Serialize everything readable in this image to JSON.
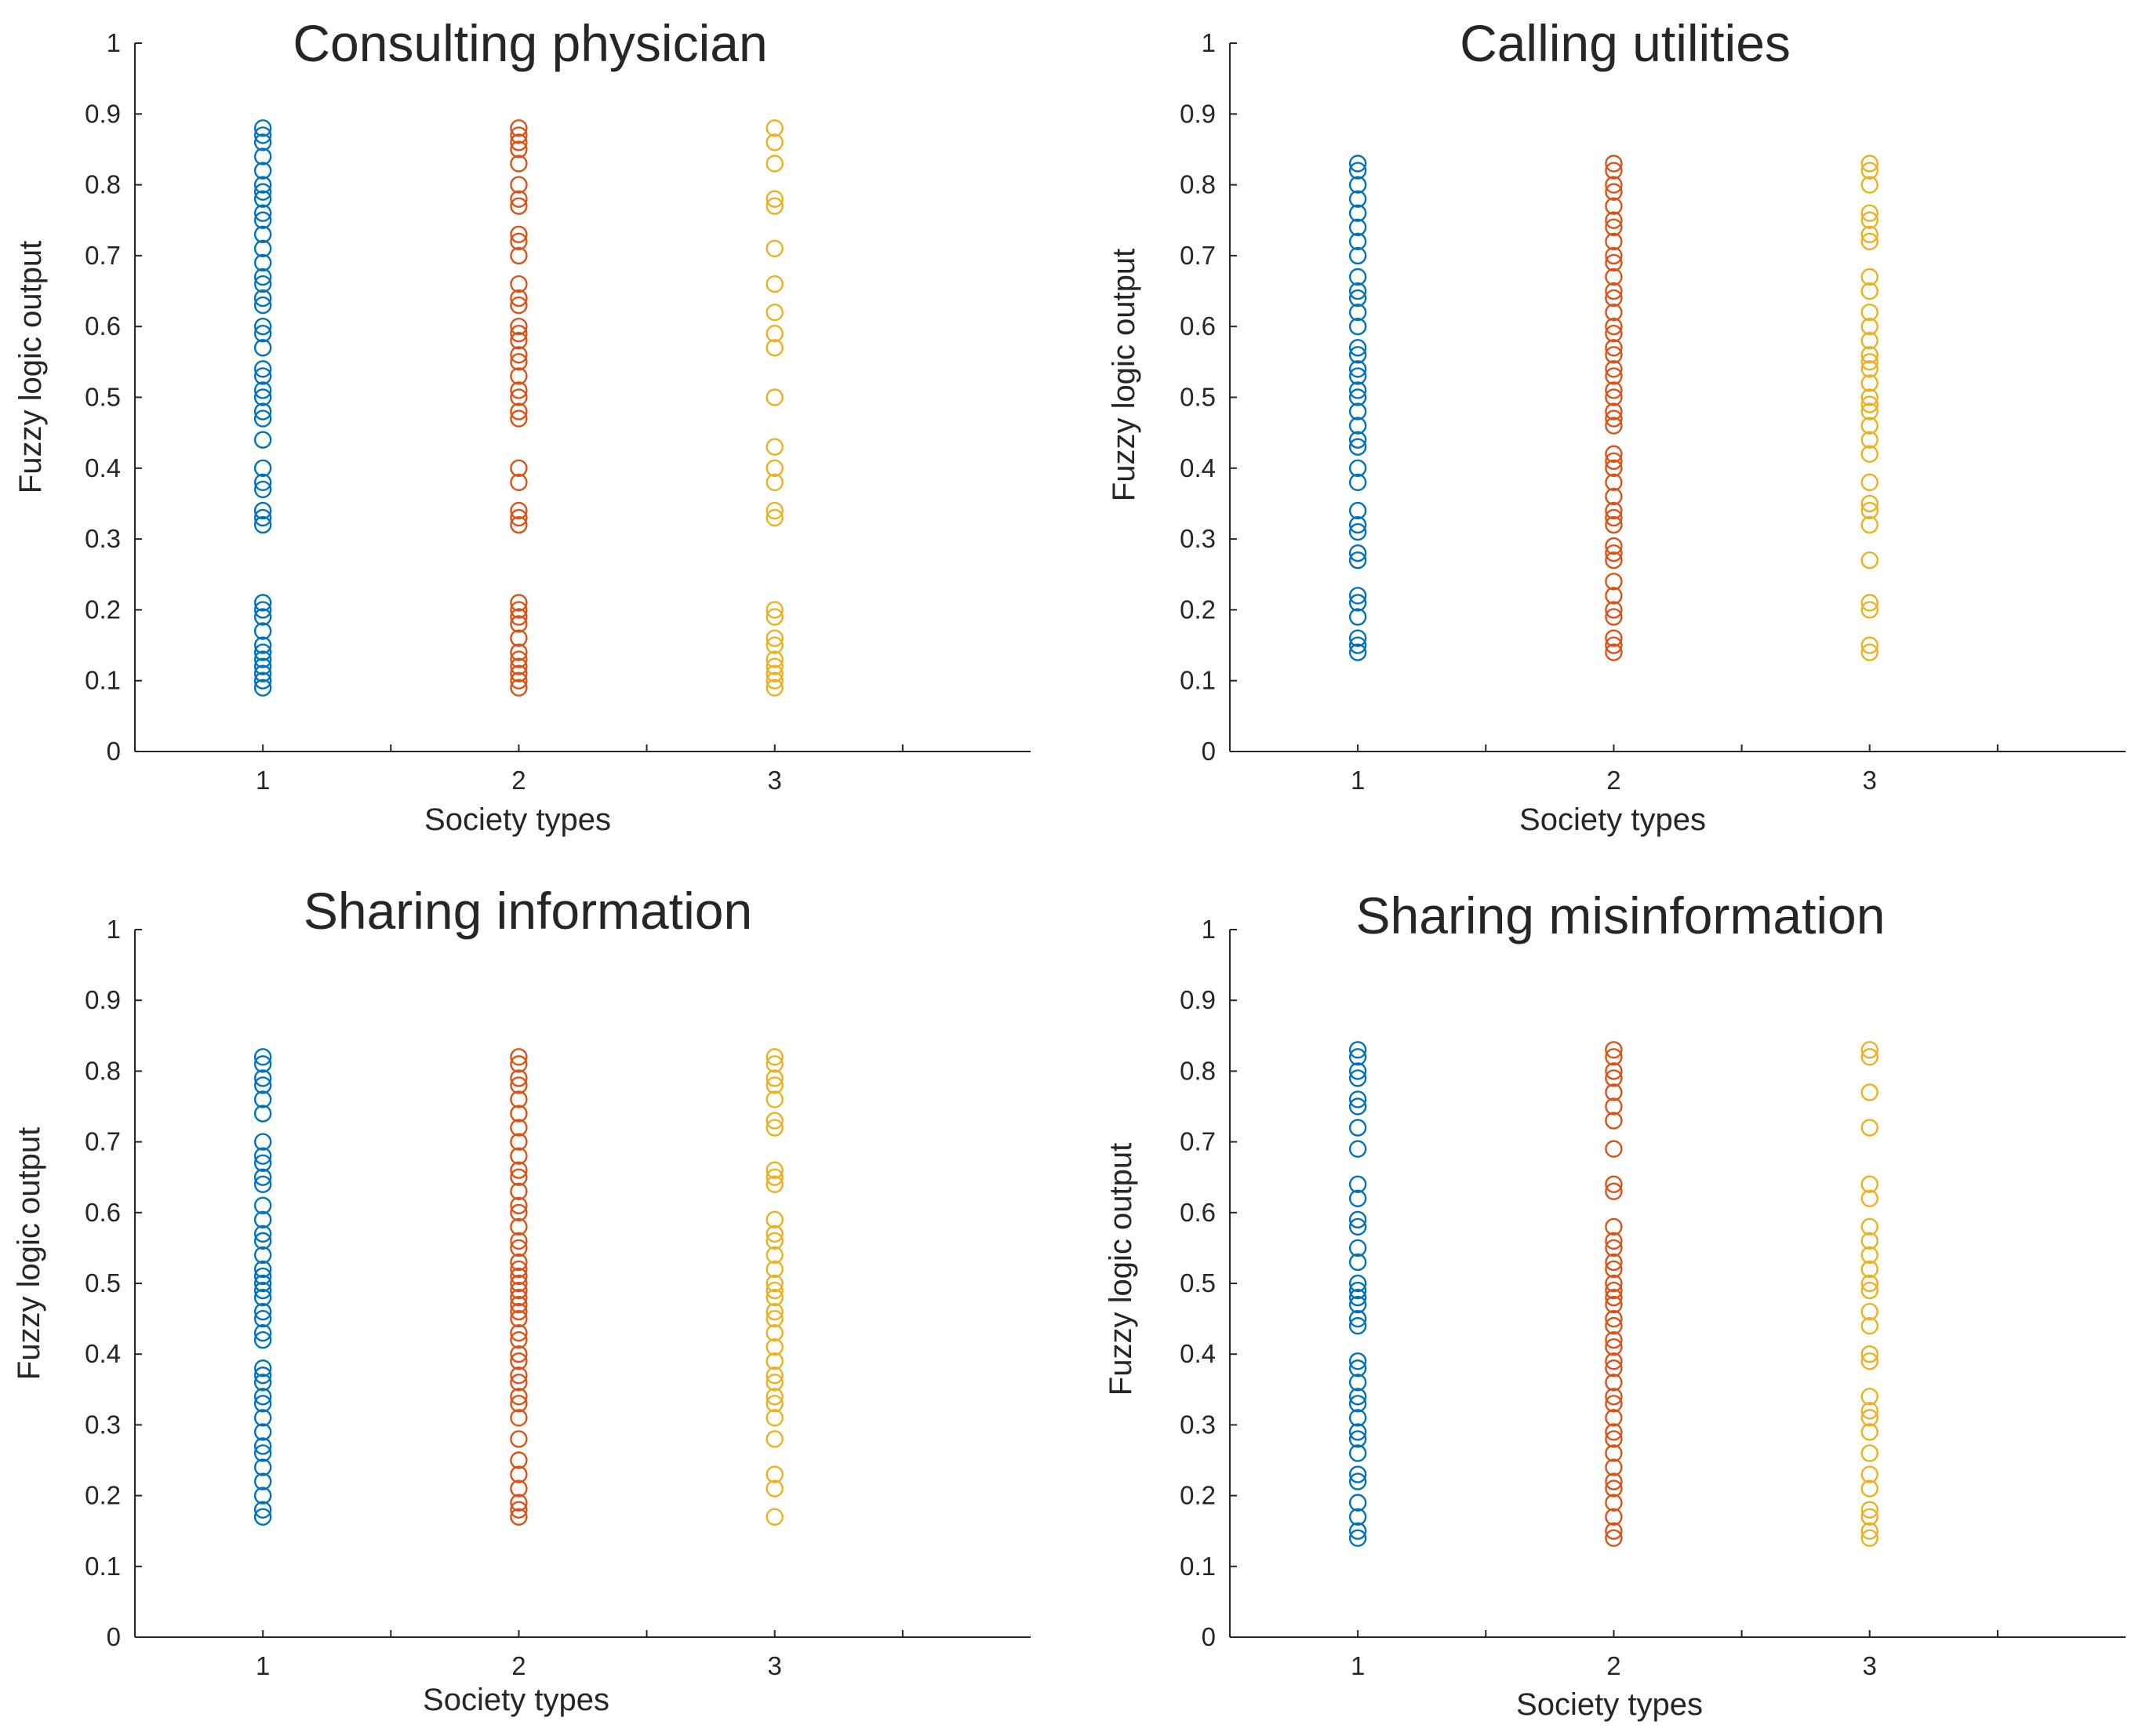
{
  "figure": {
    "colors": {
      "society_1": "#0072bd",
      "society_2": "#d95319",
      "society_3": "#edb120",
      "axis": "#262626"
    }
  },
  "chart_data": [
    {
      "type": "scatter",
      "title": "Consulting physician",
      "xlabel": "Society types",
      "ylabel": "Fuzzy logic output",
      "xlim": [
        0.5,
        4.0
      ],
      "ylim": [
        0,
        1
      ],
      "xticks": [
        "1",
        "2",
        "3"
      ],
      "yticks": [
        "0",
        "0.1",
        "0.2",
        "0.3",
        "0.4",
        "0.5",
        "0.6",
        "0.7",
        "0.8",
        "0.9",
        "1"
      ],
      "series": [
        {
          "name": "1",
          "x": 1,
          "color": "#0072bd",
          "values": [
            0.09,
            0.1,
            0.11,
            0.12,
            0.13,
            0.14,
            0.15,
            0.17,
            0.19,
            0.2,
            0.21,
            0.32,
            0.33,
            0.34,
            0.37,
            0.38,
            0.4,
            0.44,
            0.47,
            0.48,
            0.5,
            0.51,
            0.53,
            0.54,
            0.57,
            0.59,
            0.6,
            0.63,
            0.64,
            0.66,
            0.67,
            0.69,
            0.71,
            0.73,
            0.75,
            0.76,
            0.78,
            0.79,
            0.8,
            0.82,
            0.84,
            0.86,
            0.87,
            0.88
          ]
        },
        {
          "name": "2",
          "x": 2,
          "color": "#d95319",
          "values": [
            0.09,
            0.1,
            0.11,
            0.12,
            0.13,
            0.14,
            0.16,
            0.18,
            0.19,
            0.2,
            0.21,
            0.32,
            0.33,
            0.34,
            0.38,
            0.4,
            0.47,
            0.48,
            0.5,
            0.51,
            0.53,
            0.55,
            0.56,
            0.58,
            0.59,
            0.6,
            0.63,
            0.64,
            0.66,
            0.7,
            0.72,
            0.73,
            0.77,
            0.78,
            0.8,
            0.83,
            0.85,
            0.86,
            0.87,
            0.88
          ]
        },
        {
          "name": "3",
          "x": 3,
          "color": "#edb120",
          "values": [
            0.09,
            0.1,
            0.11,
            0.12,
            0.13,
            0.15,
            0.16,
            0.19,
            0.2,
            0.33,
            0.34,
            0.38,
            0.4,
            0.43,
            0.5,
            0.57,
            0.59,
            0.62,
            0.66,
            0.71,
            0.77,
            0.78,
            0.83,
            0.86,
            0.88
          ]
        }
      ]
    },
    {
      "type": "scatter",
      "title": "Calling utilities",
      "xlabel": "Society types",
      "ylabel": "Fuzzy logic output",
      "xlim": [
        0.5,
        4.0
      ],
      "ylim": [
        0,
        1
      ],
      "xticks": [
        "1",
        "2",
        "3"
      ],
      "yticks": [
        "0",
        "0.1",
        "0.2",
        "0.3",
        "0.4",
        "0.5",
        "0.6",
        "0.7",
        "0.8",
        "0.9",
        "1"
      ],
      "series": [
        {
          "name": "1",
          "x": 1,
          "color": "#0072bd",
          "values": [
            0.14,
            0.15,
            0.16,
            0.19,
            0.21,
            0.22,
            0.27,
            0.28,
            0.31,
            0.32,
            0.34,
            0.38,
            0.4,
            0.43,
            0.44,
            0.46,
            0.48,
            0.5,
            0.51,
            0.53,
            0.54,
            0.56,
            0.57,
            0.6,
            0.62,
            0.64,
            0.65,
            0.67,
            0.7,
            0.72,
            0.74,
            0.76,
            0.78,
            0.8,
            0.82,
            0.83
          ]
        },
        {
          "name": "2",
          "x": 2,
          "color": "#d95319",
          "values": [
            0.14,
            0.15,
            0.16,
            0.19,
            0.2,
            0.22,
            0.24,
            0.27,
            0.28,
            0.29,
            0.32,
            0.33,
            0.34,
            0.36,
            0.38,
            0.4,
            0.41,
            0.42,
            0.46,
            0.47,
            0.48,
            0.5,
            0.51,
            0.53,
            0.54,
            0.56,
            0.57,
            0.59,
            0.6,
            0.62,
            0.64,
            0.65,
            0.67,
            0.69,
            0.7,
            0.72,
            0.74,
            0.75,
            0.77,
            0.79,
            0.8,
            0.82,
            0.83
          ]
        },
        {
          "name": "3",
          "x": 3,
          "color": "#edb120",
          "values": [
            0.14,
            0.15,
            0.2,
            0.21,
            0.27,
            0.32,
            0.34,
            0.35,
            0.38,
            0.42,
            0.44,
            0.46,
            0.48,
            0.49,
            0.5,
            0.52,
            0.54,
            0.55,
            0.56,
            0.58,
            0.6,
            0.62,
            0.65,
            0.67,
            0.72,
            0.73,
            0.75,
            0.76,
            0.8,
            0.82,
            0.83
          ]
        }
      ]
    },
    {
      "type": "scatter",
      "title": "Sharing information",
      "xlabel": "Society types",
      "ylabel": "Fuzzy logic output",
      "xlim": [
        0.5,
        4.0
      ],
      "ylim": [
        0,
        1
      ],
      "xticks": [
        "1",
        "2",
        "3"
      ],
      "yticks": [
        "0",
        "0.1",
        "0.2",
        "0.3",
        "0.4",
        "0.5",
        "0.6",
        "0.7",
        "0.8",
        "0.9",
        "1"
      ],
      "series": [
        {
          "name": "1",
          "x": 1,
          "color": "#0072bd",
          "values": [
            0.17,
            0.18,
            0.2,
            0.22,
            0.24,
            0.26,
            0.27,
            0.29,
            0.31,
            0.33,
            0.34,
            0.36,
            0.37,
            0.38,
            0.42,
            0.43,
            0.45,
            0.46,
            0.48,
            0.49,
            0.5,
            0.51,
            0.52,
            0.54,
            0.56,
            0.57,
            0.59,
            0.61,
            0.64,
            0.65,
            0.67,
            0.68,
            0.7,
            0.74,
            0.76,
            0.78,
            0.79,
            0.81,
            0.82
          ]
        },
        {
          "name": "2",
          "x": 2,
          "color": "#d95319",
          "values": [
            0.17,
            0.18,
            0.19,
            0.21,
            0.23,
            0.25,
            0.28,
            0.31,
            0.33,
            0.34,
            0.36,
            0.37,
            0.39,
            0.4,
            0.42,
            0.43,
            0.45,
            0.46,
            0.47,
            0.48,
            0.49,
            0.5,
            0.51,
            0.52,
            0.53,
            0.55,
            0.56,
            0.58,
            0.6,
            0.61,
            0.63,
            0.65,
            0.66,
            0.68,
            0.7,
            0.72,
            0.74,
            0.76,
            0.78,
            0.79,
            0.81,
            0.82
          ]
        },
        {
          "name": "3",
          "x": 3,
          "color": "#edb120",
          "values": [
            0.17,
            0.21,
            0.23,
            0.28,
            0.31,
            0.33,
            0.34,
            0.36,
            0.37,
            0.39,
            0.41,
            0.43,
            0.45,
            0.46,
            0.48,
            0.49,
            0.5,
            0.52,
            0.54,
            0.56,
            0.57,
            0.59,
            0.64,
            0.65,
            0.66,
            0.72,
            0.73,
            0.76,
            0.78,
            0.79,
            0.81,
            0.82
          ]
        }
      ]
    },
    {
      "type": "scatter",
      "title": "Sharing misinformation",
      "xlabel": "Society types",
      "ylabel": "Fuzzy logic output",
      "xlim": [
        0.5,
        4.0
      ],
      "ylim": [
        0,
        1
      ],
      "xticks": [
        "1",
        "2",
        "3"
      ],
      "yticks": [
        "0",
        "0.1",
        "0.2",
        "0.3",
        "0.4",
        "0.5",
        "0.6",
        "0.7",
        "0.8",
        "0.9",
        "1"
      ],
      "series": [
        {
          "name": "1",
          "x": 1,
          "color": "#0072bd",
          "values": [
            0.14,
            0.15,
            0.17,
            0.19,
            0.22,
            0.23,
            0.26,
            0.28,
            0.29,
            0.31,
            0.33,
            0.34,
            0.36,
            0.38,
            0.39,
            0.44,
            0.45,
            0.47,
            0.48,
            0.49,
            0.5,
            0.53,
            0.55,
            0.58,
            0.59,
            0.62,
            0.64,
            0.69,
            0.72,
            0.75,
            0.76,
            0.79,
            0.8,
            0.82,
            0.83
          ]
        },
        {
          "name": "2",
          "x": 2,
          "color": "#d95319",
          "values": [
            0.14,
            0.15,
            0.17,
            0.19,
            0.21,
            0.22,
            0.24,
            0.26,
            0.28,
            0.29,
            0.31,
            0.33,
            0.34,
            0.36,
            0.38,
            0.39,
            0.41,
            0.42,
            0.44,
            0.45,
            0.47,
            0.48,
            0.49,
            0.5,
            0.52,
            0.53,
            0.55,
            0.56,
            0.58,
            0.63,
            0.64,
            0.69,
            0.73,
            0.75,
            0.77,
            0.79,
            0.8,
            0.82,
            0.83
          ]
        },
        {
          "name": "3",
          "x": 3,
          "color": "#edb120",
          "values": [
            0.14,
            0.15,
            0.17,
            0.18,
            0.21,
            0.23,
            0.26,
            0.29,
            0.31,
            0.32,
            0.34,
            0.39,
            0.4,
            0.44,
            0.46,
            0.49,
            0.5,
            0.52,
            0.54,
            0.56,
            0.58,
            0.62,
            0.64,
            0.72,
            0.77,
            0.82,
            0.83
          ]
        }
      ]
    }
  ]
}
